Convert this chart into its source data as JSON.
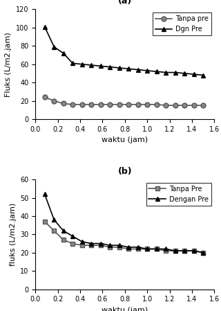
{
  "plot_a": {
    "title": "(a)",
    "xlabel": "waktu (jam)",
    "ylabel": "Fluks (L/m2.jam)",
    "ylim": [
      0,
      120
    ],
    "xlim": [
      0,
      1.6
    ],
    "yticks": [
      0,
      20,
      40,
      60,
      80,
      100,
      120
    ],
    "xticks": [
      0,
      0.2,
      0.4,
      0.6,
      0.8,
      1.0,
      1.2,
      1.4,
      1.6
    ],
    "tanpa_pre_x": [
      0.083,
      0.167,
      0.25,
      0.333,
      0.417,
      0.5,
      0.583,
      0.667,
      0.75,
      0.833,
      0.917,
      1.0,
      1.083,
      1.167,
      1.25,
      1.333,
      1.417,
      1.5
    ],
    "tanpa_pre_y": [
      24,
      20,
      17,
      16,
      16,
      16,
      16,
      16,
      16,
      16,
      16,
      16,
      16,
      15,
      15,
      15,
      15,
      15
    ],
    "dgn_pre_x": [
      0.083,
      0.167,
      0.25,
      0.333,
      0.417,
      0.5,
      0.583,
      0.667,
      0.75,
      0.833,
      0.917,
      1.0,
      1.083,
      1.167,
      1.25,
      1.333,
      1.417,
      1.5
    ],
    "dgn_pre_y": [
      101,
      79,
      72,
      61,
      60,
      59,
      58,
      57,
      56,
      55,
      54,
      53,
      52,
      51,
      51,
      50,
      49,
      48
    ],
    "legend_tanpa": "Tanpa pre",
    "legend_dgn": "Dgn Pre"
  },
  "plot_b": {
    "title": "(b)",
    "xlabel": "waktu (jam)",
    "ylabel": "fluks (L/m2.jam)",
    "ylim": [
      0,
      60
    ],
    "xlim": [
      0,
      1.6
    ],
    "yticks": [
      0,
      10,
      20,
      30,
      40,
      50,
      60
    ],
    "xticks": [
      0,
      0.2,
      0.4,
      0.6,
      0.8,
      1.0,
      1.2,
      1.4,
      1.6
    ],
    "tanpa_pre_x": [
      0.083,
      0.167,
      0.25,
      0.333,
      0.417,
      0.5,
      0.583,
      0.667,
      0.75,
      0.833,
      0.917,
      1.0,
      1.083,
      1.167,
      1.25,
      1.333,
      1.417,
      1.5
    ],
    "tanpa_pre_y": [
      37,
      32,
      27,
      25,
      24,
      24,
      24,
      23,
      23,
      22,
      22,
      22,
      22,
      21,
      21,
      21,
      21,
      20
    ],
    "dgn_pre_x": [
      0.083,
      0.167,
      0.25,
      0.333,
      0.417,
      0.5,
      0.583,
      0.667,
      0.75,
      0.833,
      0.917,
      1.0,
      1.083,
      1.167,
      1.25,
      1.333,
      1.417,
      1.5
    ],
    "dgn_pre_y": [
      52,
      38,
      32,
      29,
      26,
      25,
      25,
      24,
      24,
      23,
      23,
      22,
      22,
      22,
      21,
      21,
      21,
      20
    ],
    "legend_tanpa": "Tanpa Pre",
    "legend_dgn": "Dengan Pre"
  },
  "line_color": "#555555",
  "marker_circle": "o",
  "marker_triangle": "^",
  "marker_size": 5,
  "line_width": 1.2,
  "bg_color": "#ffffff",
  "font_size_label": 8,
  "font_size_tick": 7,
  "font_size_legend": 7,
  "font_size_title": 9
}
